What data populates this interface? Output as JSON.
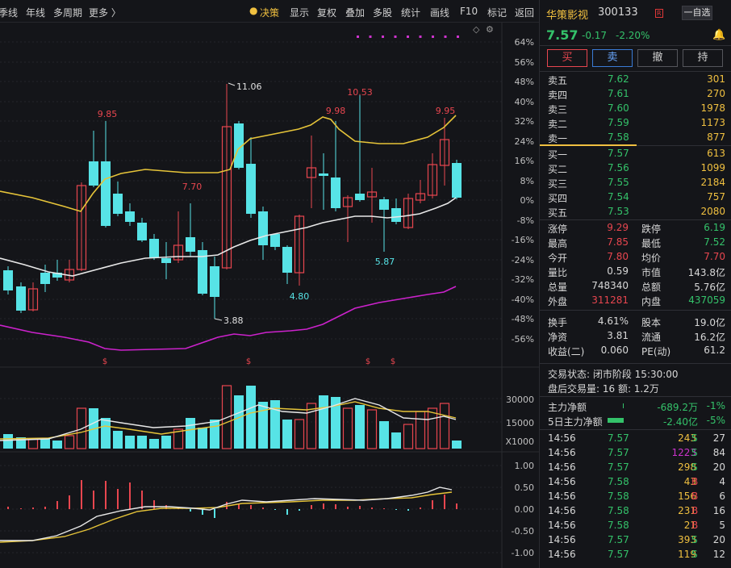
{
  "toolbar": {
    "items": [
      "季线",
      "年线",
      "多周期",
      "更多 〉",
      "决策",
      "显示",
      "复权",
      "叠加",
      "多股",
      "统计",
      "画线",
      "F10",
      "标记",
      "返回"
    ]
  },
  "chart": {
    "colors": {
      "up": "#e8464f",
      "down": "#57e3e6",
      "ma_yellow": "#e6c439",
      "ma_white": "#e8e8e8",
      "boll_low": "#cc22cc",
      "grid": "#24252b",
      "bg": "#141519"
    },
    "main_axis": [
      "64%",
      "56%",
      "48%",
      "40%",
      "32%",
      "24%",
      "16%",
      "8%",
      "0%",
      "-8%",
      "-16%",
      "-24%",
      "-32%",
      "-40%",
      "-48%",
      "-56%"
    ],
    "price_labels": {
      "p985": "9.85",
      "p770": "7.70",
      "p1106": "11.06",
      "p388": "3.88",
      "p998": "9.98",
      "p1053": "10.53",
      "p587": "5.87",
      "p480": "4.80",
      "p995": "9.95"
    },
    "markers": [
      "$",
      "$",
      "$",
      "$"
    ],
    "vol_axis": {
      "v30000": "30000",
      "v15000": "15000",
      "unit": "X1000"
    },
    "macd_axis": [
      "1.00",
      "0.50",
      "0.00",
      "-0.50",
      "-1.00"
    ]
  },
  "quote": {
    "name": "华策影视",
    "code": "300133",
    "badge": "R",
    "fav_label": "一自选",
    "price": "7.57",
    "change": "-0.17",
    "pct": "-2.20%",
    "trade_buttons": [
      "买",
      "卖",
      "撤",
      "持"
    ],
    "asks": [
      {
        "label": "卖五",
        "price": "7.62",
        "vol": "301"
      },
      {
        "label": "卖四",
        "price": "7.61",
        "vol": "270"
      },
      {
        "label": "卖三",
        "price": "7.60",
        "vol": "1978"
      },
      {
        "label": "卖二",
        "price": "7.59",
        "vol": "1173"
      },
      {
        "label": "卖一",
        "price": "7.58",
        "vol": "877"
      }
    ],
    "bids": [
      {
        "label": "买一",
        "price": "7.57",
        "vol": "613"
      },
      {
        "label": "买二",
        "price": "7.56",
        "vol": "1099"
      },
      {
        "label": "买三",
        "price": "7.55",
        "vol": "2184"
      },
      {
        "label": "买四",
        "price": "7.54",
        "vol": "757"
      },
      {
        "label": "买五",
        "price": "7.53",
        "vol": "2080"
      }
    ],
    "stats": [
      {
        "l1": "涨停",
        "v1": "9.29",
        "l2": "跌停",
        "v2": "6.19"
      },
      {
        "l1": "最高",
        "v1": "7.85",
        "l2": "最低",
        "v2": "7.52"
      },
      {
        "l1": "今开",
        "v1": "7.80",
        "l2": "均价",
        "v2": "7.70"
      },
      {
        "l1": "量比",
        "v1": "0.59",
        "l2": "市值",
        "v2": "143.8亿"
      },
      {
        "l1": "总量",
        "v1": "748340",
        "l2": "总额",
        "v2": "5.76亿"
      },
      {
        "l1": "外盘",
        "v1": "311281",
        "l2": "内盘",
        "v2": "437059"
      }
    ],
    "stats2": [
      {
        "l1": "换手",
        "v1": "4.61%",
        "l2": "股本",
        "v2": "19.0亿"
      },
      {
        "l1": "净资",
        "v1": "3.81",
        "l2": "流通",
        "v2": "16.2亿"
      },
      {
        "l1": "收益(二)",
        "v1": "0.060",
        "l2": "PE(动)",
        "v2": "61.2"
      }
    ],
    "status": "交易状态: 闭市阶段 15:30:00",
    "after": "盘后交易量: 16  额: 1.2万",
    "flow1": {
      "label": "主力净额",
      "value": "-689.2万",
      "pct": "-1%"
    },
    "flow2": {
      "label": "5日主力净额",
      "value": "-2.40亿",
      "pct": "-5%"
    },
    "ticks": [
      {
        "t": "14:56",
        "p": "7.57",
        "v": "243",
        "s": "S",
        "n": "27"
      },
      {
        "t": "14:56",
        "p": "7.57",
        "v": "1223",
        "s": "S",
        "n": "84"
      },
      {
        "t": "14:56",
        "p": "7.57",
        "v": "298",
        "s": "S",
        "n": "20"
      },
      {
        "t": "14:56",
        "p": "7.58",
        "v": "43",
        "s": "B",
        "n": "4"
      },
      {
        "t": "14:56",
        "p": "7.58",
        "v": "156",
        "s": "B",
        "n": "6"
      },
      {
        "t": "14:56",
        "p": "7.58",
        "v": "231",
        "s": "B",
        "n": "16"
      },
      {
        "t": "14:56",
        "p": "7.58",
        "v": "21",
        "s": "B",
        "n": "5"
      },
      {
        "t": "14:56",
        "p": "7.57",
        "v": "393",
        "s": "S",
        "n": "20"
      },
      {
        "t": "14:56",
        "p": "7.57",
        "v": "119",
        "s": "S",
        "n": "12"
      }
    ]
  }
}
